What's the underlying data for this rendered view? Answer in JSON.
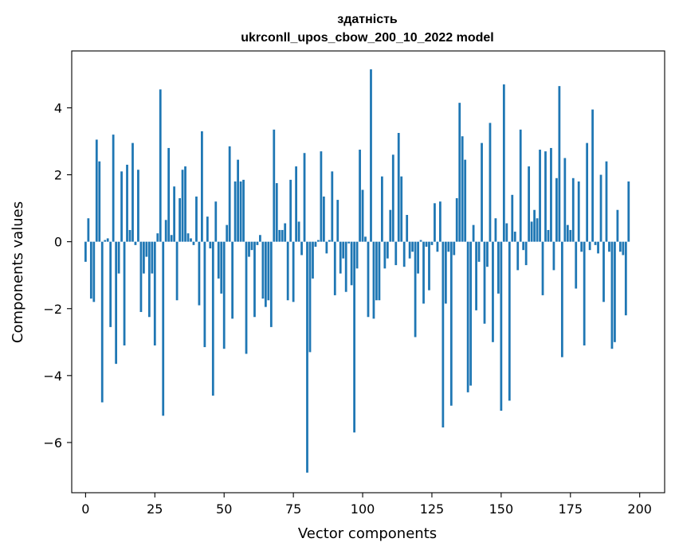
{
  "chart_data": {
    "type": "bar",
    "title": "здатність",
    "subtitle": "ukrconll_upos_cbow_200_10_2022 model",
    "xlabel": "Vector components",
    "ylabel": "Components values",
    "xlim": [
      -5,
      209
    ],
    "ylim": [
      -7.5,
      5.7
    ],
    "x_ticks": [
      0,
      25,
      50,
      75,
      100,
      125,
      150,
      175,
      200
    ],
    "y_ticks": [
      -6,
      -4,
      -2,
      0,
      2,
      4
    ],
    "y_tick_labels": [
      "−6",
      "−4",
      "−2",
      "0",
      "2",
      "4"
    ],
    "bar_color": "#1f77b4",
    "grid": false,
    "series": [
      {
        "name": "components",
        "x_start": 0,
        "values": [
          -0.6,
          0.7,
          -1.7,
          -1.8,
          3.05,
          2.4,
          -4.8,
          0.05,
          0.1,
          -2.55,
          3.2,
          -3.65,
          -0.95,
          2.1,
          -3.1,
          2.3,
          0.35,
          2.95,
          -0.1,
          2.15,
          -2.1,
          -0.95,
          -0.45,
          -2.25,
          -0.95,
          -3.1,
          0.25,
          4.55,
          -5.2,
          0.65,
          2.8,
          0.2,
          1.65,
          -1.75,
          1.3,
          2.15,
          2.25,
          0.25,
          0.1,
          -0.1,
          1.35,
          -1.9,
          3.3,
          -3.15,
          0.75,
          -0.2,
          -4.6,
          1.2,
          -1.1,
          -1.55,
          -3.2,
          0.5,
          2.85,
          -2.3,
          1.8,
          2.45,
          1.8,
          1.85,
          -3.35,
          -0.45,
          -0.25,
          -2.25,
          -0.1,
          0.2,
          -1.7,
          -1.95,
          -1.75,
          -2.55,
          3.35,
          1.75,
          0.35,
          0.35,
          0.55,
          -1.75,
          1.85,
          -1.8,
          2.25,
          0.6,
          -0.4,
          2.65,
          -6.9,
          -3.3,
          -1.1,
          -0.15,
          0.05,
          2.7,
          1.35,
          -0.35,
          0.05,
          2.1,
          -1.6,
          1.25,
          -0.95,
          -0.5,
          -1.5,
          -0.05,
          -1.3,
          -5.7,
          -0.8,
          2.75,
          1.55,
          0.15,
          -2.25,
          5.15,
          -2.3,
          -1.75,
          -1.75,
          1.95,
          -0.8,
          -0.5,
          0.95,
          2.6,
          -0.7,
          3.25,
          1.95,
          -0.75,
          0.8,
          -0.5,
          -0.3,
          -2.85,
          -0.95,
          0.05,
          -1.85,
          -0.15,
          -1.45,
          -0.1,
          1.15,
          -0.3,
          1.2,
          -5.55,
          -1.85,
          -0.3,
          -4.9,
          -0.4,
          1.3,
          4.15,
          3.15,
          2.45,
          -4.5,
          -4.3,
          0.5,
          -2.05,
          -0.6,
          2.95,
          -2.45,
          -0.75,
          3.55,
          -3.0,
          0.7,
          -1.55,
          -5.05,
          4.7,
          0.55,
          -4.75,
          1.4,
          0.3,
          -0.85,
          3.35,
          -0.25,
          -0.7,
          2.25,
          0.6,
          0.95,
          0.7,
          2.75,
          -1.6,
          2.7,
          0.35,
          2.8,
          -0.85,
          1.9,
          4.65,
          -3.45,
          2.5,
          0.5,
          0.35,
          1.9,
          -1.4,
          1.8,
          -0.3,
          -3.1,
          2.95,
          -0.25,
          3.95,
          -0.1,
          -0.35,
          2.0,
          -1.8,
          2.4,
          -0.3,
          -3.2,
          -3.0,
          0.95,
          -0.3,
          -0.4,
          -2.2,
          1.8
        ]
      }
    ]
  }
}
